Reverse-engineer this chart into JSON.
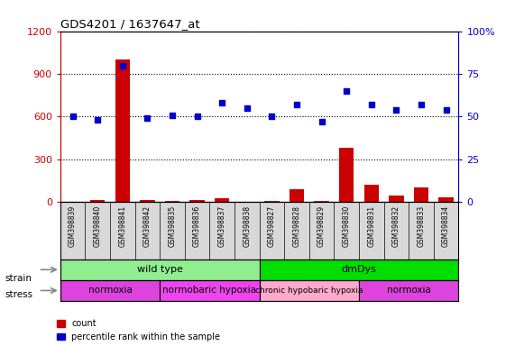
{
  "title": "GDS4201 / 1637647_at",
  "samples": [
    "GSM398839",
    "GSM398840",
    "GSM398841",
    "GSM398842",
    "GSM398835",
    "GSM398836",
    "GSM398837",
    "GSM398838",
    "GSM398827",
    "GSM398828",
    "GSM398829",
    "GSM398830",
    "GSM398831",
    "GSM398832",
    "GSM398833",
    "GSM398834"
  ],
  "counts": [
    5,
    12,
    1000,
    15,
    8,
    12,
    30,
    5,
    8,
    90,
    8,
    380,
    120,
    45,
    105,
    35
  ],
  "percentiles": [
    50,
    48,
    80,
    49,
    51,
    50,
    58,
    55,
    50,
    57,
    47,
    65,
    57,
    54,
    57,
    54
  ],
  "count_color": "#cc0000",
  "percentile_color": "#0000cc",
  "ylim_left": [
    0,
    1200
  ],
  "ylim_right": [
    0,
    100
  ],
  "yticks_left": [
    0,
    300,
    600,
    900,
    1200
  ],
  "ytick_labels_left": [
    "0",
    "300",
    "600",
    "900",
    "1200"
  ],
  "yticks_right": [
    0,
    25,
    50,
    75,
    100
  ],
  "ytick_labels_right": [
    "0",
    "25",
    "50",
    "75",
    "100%"
  ],
  "strain_groups": [
    {
      "label": "wild type",
      "start": 0,
      "end": 8,
      "color": "#90ee90"
    },
    {
      "label": "dmDys",
      "start": 8,
      "end": 16,
      "color": "#00dd00"
    }
  ],
  "stress_groups": [
    {
      "label": "normoxia",
      "start": 0,
      "end": 4,
      "color": "#dd44dd"
    },
    {
      "label": "normobaric hypoxia",
      "start": 4,
      "end": 8,
      "color": "#ee44ee"
    },
    {
      "label": "chronic hypobaric hypoxia",
      "start": 8,
      "end": 12,
      "color": "#ffaacc"
    },
    {
      "label": "normoxia",
      "start": 12,
      "end": 16,
      "color": "#dd44dd"
    }
  ],
  "background_color": "#ffffff",
  "tick_label_color_left": "#cc0000",
  "tick_label_color_right": "#0000cc",
  "bar_width": 0.6
}
